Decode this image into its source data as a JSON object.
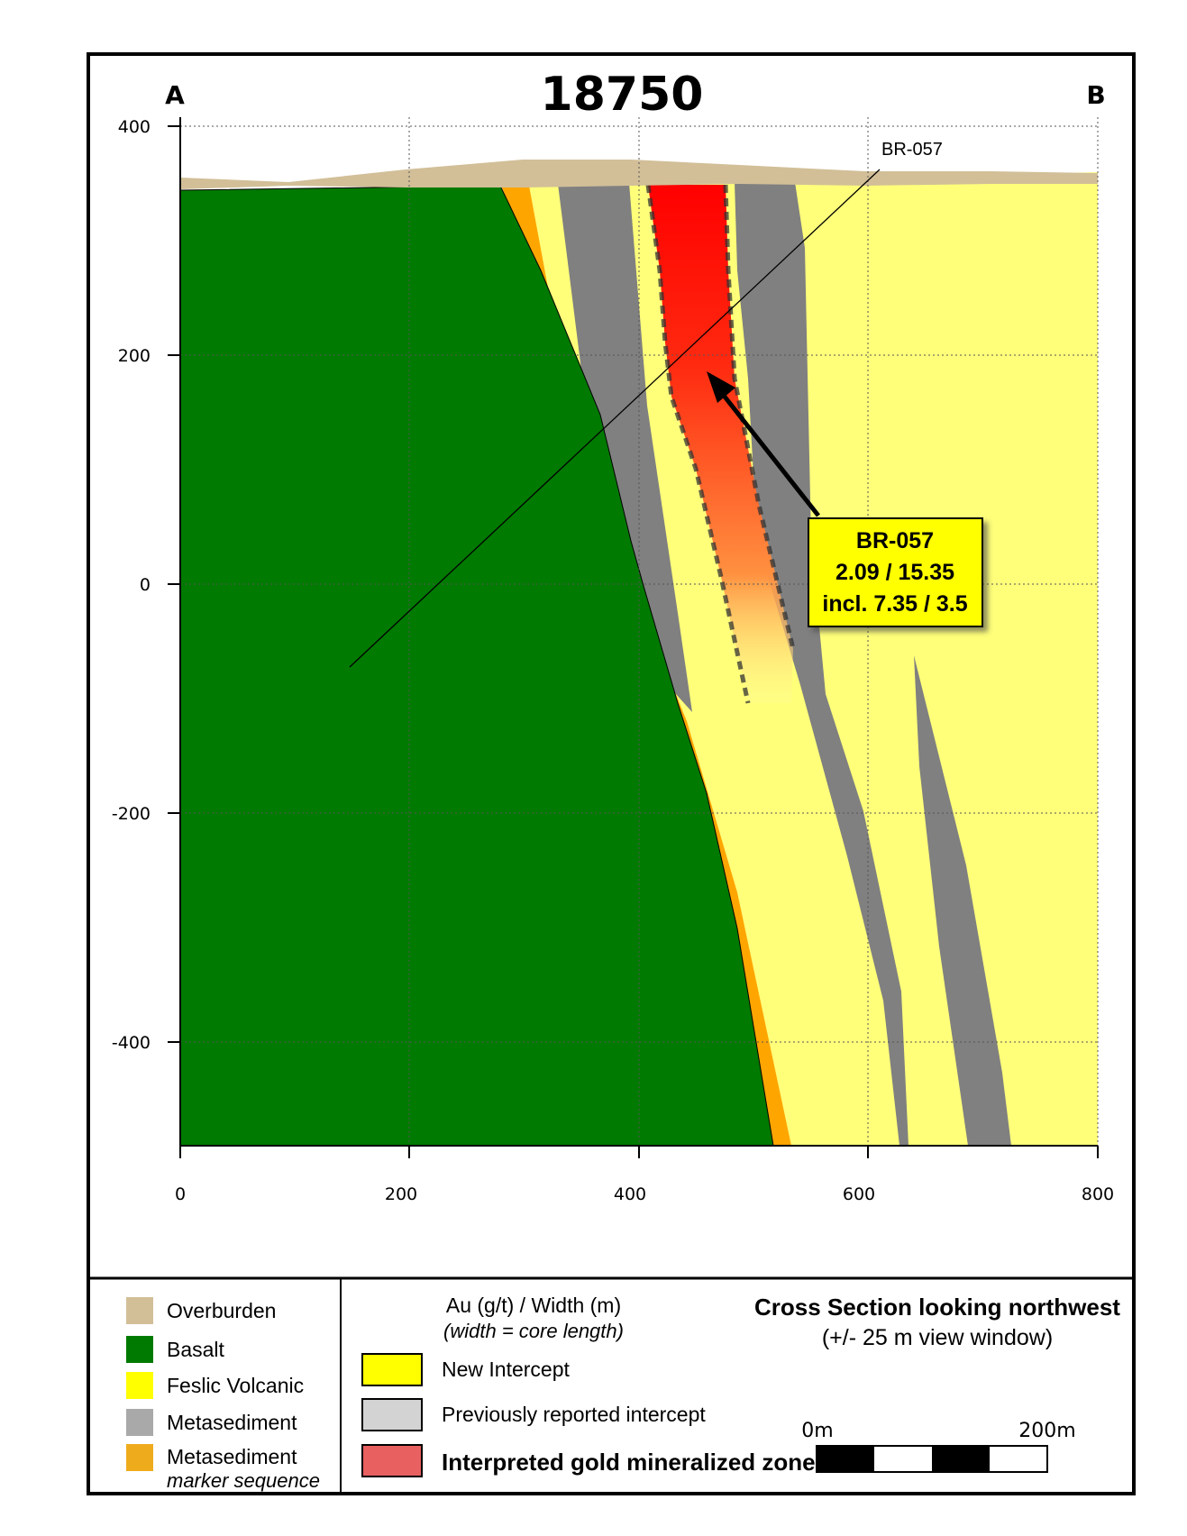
{
  "section": {
    "title": "18750",
    "corner_left": "A",
    "corner_right": "B"
  },
  "axes": {
    "x_ticks": [
      "0",
      "200",
      "400",
      "600",
      "800"
    ],
    "y_ticks": [
      "400",
      "200",
      "0",
      "-200",
      "-400"
    ],
    "x_range": [
      0,
      800
    ],
    "y_range": [
      -490,
      400
    ],
    "grid": "dotted"
  },
  "drillhole": {
    "name": "BR-057"
  },
  "callout": {
    "line1": "BR-057",
    "line2": "2.09 / 15.35",
    "line3": "incl. 7.35 / 3.5",
    "fill": "#ffff00"
  },
  "legend": {
    "lithology": [
      {
        "label": "Overburden",
        "color": "#d2bf98"
      },
      {
        "label": "Basalt",
        "color": "#007a00"
      },
      {
        "label": "Feslic Volcanic",
        "color": "#ffff00"
      },
      {
        "label": "Metasediment",
        "color": "#a9a9a9"
      },
      {
        "label": "Metasediment",
        "sublabel": "marker sequence",
        "color": "#eeac1c"
      }
    ],
    "intercepts": {
      "heading": "Au (g/t) / Width (m)",
      "subheading": "(width = core length)",
      "items": [
        {
          "label": "New Intercept",
          "color": "#ffff00"
        },
        {
          "label": "Previously reported  intercept",
          "color": "#d3d3d3"
        },
        {
          "label": "Interpreted gold mineralized zone",
          "color": "#e86060"
        }
      ]
    },
    "view": {
      "line1": "Cross Section looking northwest",
      "line2": "(+/- 25 m view window)"
    },
    "scale": {
      "left": "0m",
      "right": "200m"
    }
  }
}
